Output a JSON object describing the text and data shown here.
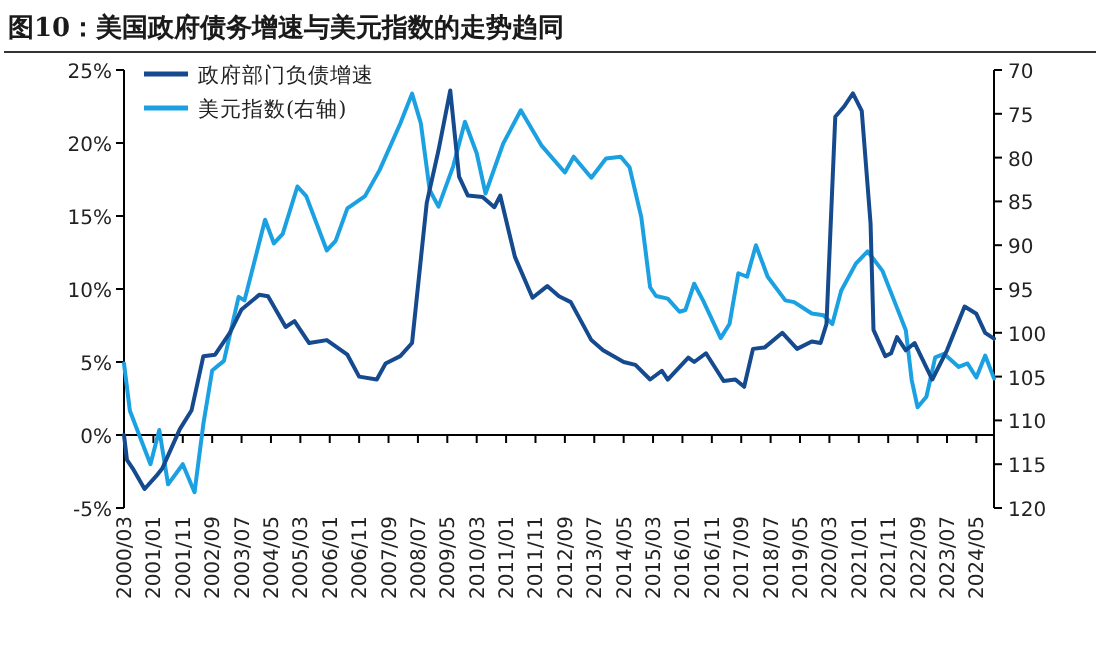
{
  "chart_data": {
    "type": "line",
    "title": "图10：美国政府债务增速与美元指数的走势趋同",
    "legend": "top left",
    "xlim": [
      "2000-03",
      "2024-11"
    ],
    "xticks": [
      {
        "value": "2000-03",
        "label": "2000/03"
      },
      {
        "value": "2001-01",
        "label": "2001/01"
      },
      {
        "value": "2001-11",
        "label": "2001/11"
      },
      {
        "value": "2002-09",
        "label": "2002/09"
      },
      {
        "value": "2003-07",
        "label": "2003/07"
      },
      {
        "value": "2004-05",
        "label": "2004/05"
      },
      {
        "value": "2005-03",
        "label": "2005/03"
      },
      {
        "value": "2006-01",
        "label": "2006/01"
      },
      {
        "value": "2006-11",
        "label": "2006/11"
      },
      {
        "value": "2007-09",
        "label": "2007/09"
      },
      {
        "value": "2008-07",
        "label": "2008/07"
      },
      {
        "value": "2009-05",
        "label": "2009/05"
      },
      {
        "value": "2010-03",
        "label": "2010/03"
      },
      {
        "value": "2011-01",
        "label": "2011/01"
      },
      {
        "value": "2011-11",
        "label": "2011/11"
      },
      {
        "value": "2012-09",
        "label": "2012/09"
      },
      {
        "value": "2013-07",
        "label": "2013/07"
      },
      {
        "value": "2014-05",
        "label": "2014/05"
      },
      {
        "value": "2015-03",
        "label": "2015/03"
      },
      {
        "value": "2016-01",
        "label": "2016/01"
      },
      {
        "value": "2016-11",
        "label": "2016/11"
      },
      {
        "value": "2017-09",
        "label": "2017/09"
      },
      {
        "value": "2018-07",
        "label": "2018/07"
      },
      {
        "value": "2019-05",
        "label": "2019/05"
      },
      {
        "value": "2020-03",
        "label": "2020/03"
      },
      {
        "value": "2021-01",
        "label": "2021/01"
      },
      {
        "value": "2021-11",
        "label": "2021/11"
      },
      {
        "value": "2022-09",
        "label": "2022/09"
      },
      {
        "value": "2023-07",
        "label": "2023/07"
      },
      {
        "value": "2024-05",
        "label": "2024/05"
      }
    ],
    "ylim": [
      -5,
      25
    ],
    "yticks": [
      {
        "value": -5,
        "label": "-5%"
      },
      {
        "value": 0,
        "label": "0%"
      },
      {
        "value": 5,
        "label": "5%"
      },
      {
        "value": 10,
        "label": "10%"
      },
      {
        "value": 15,
        "label": "15%"
      },
      {
        "value": 20,
        "label": "20%"
      },
      {
        "value": 25,
        "label": "25%"
      }
    ],
    "y2lim": [
      120,
      70
    ],
    "y2ticks": [
      70,
      75,
      80,
      85,
      90,
      95,
      100,
      105,
      110,
      115,
      120
    ],
    "series": [
      {
        "name": "政府部门负债增速",
        "color": "#164a8e",
        "x": [
          "2000-03",
          "2000-04",
          "2000-06",
          "2000-10",
          "2001-02",
          "2001-04",
          "2001-10",
          "2002-02",
          "2002-06",
          "2002-10",
          "2003-03",
          "2003-07",
          "2004-01",
          "2004-04",
          "2004-10",
          "2005-01",
          "2005-06",
          "2005-12",
          "2006-07",
          "2006-11",
          "2007-05",
          "2007-08",
          "2008-01",
          "2008-05",
          "2008-10",
          "2009-02",
          "2009-06",
          "2009-09",
          "2009-12",
          "2010-05",
          "2010-09",
          "2010-11",
          "2011-04",
          "2011-10",
          "2012-03",
          "2012-07",
          "2012-11",
          "2013-06",
          "2013-10",
          "2014-05",
          "2014-09",
          "2015-02",
          "2015-06",
          "2015-08",
          "2016-03",
          "2016-05",
          "2016-09",
          "2017-03",
          "2017-07",
          "2017-10",
          "2018-01",
          "2018-05",
          "2018-11",
          "2019-04",
          "2019-09",
          "2019-12",
          "2020-02",
          "2020-05",
          "2020-08",
          "2020-11",
          "2021-02",
          "2021-05",
          "2021-06",
          "2021-10",
          "2021-12",
          "2022-02",
          "2022-05",
          "2022-08",
          "2023-02",
          "2023-07",
          "2024-01",
          "2024-05",
          "2024-08",
          "2024-11"
        ],
        "values": [
          0,
          -1.7,
          -2.3,
          -3.7,
          -2.8,
          -2.3,
          0.4,
          1.7,
          5.4,
          5.5,
          7.0,
          8.6,
          9.6,
          9.5,
          7.4,
          7.8,
          6.3,
          6.5,
          5.5,
          4.0,
          3.8,
          4.9,
          5.4,
          6.3,
          15.9,
          19.5,
          23.6,
          17.7,
          16.4,
          16.3,
          15.6,
          16.4,
          12.2,
          9.4,
          10.2,
          9.5,
          9.1,
          6.5,
          5.8,
          5.0,
          4.8,
          3.8,
          4.4,
          3.8,
          5.3,
          5.0,
          5.6,
          3.7,
          3.8,
          3.3,
          5.9,
          6.0,
          7.0,
          5.9,
          6.4,
          6.3,
          7.6,
          21.8,
          22.5,
          23.4,
          22.2,
          14.5,
          7.2,
          5.4,
          5.6,
          6.7,
          5.8,
          6.3,
          3.8,
          5.8,
          8.8,
          8.3,
          7.0,
          6.6
        ]
      },
      {
        "name": "美元指数(右轴)",
        "color": "#1ba1e2",
        "axis": "y2",
        "x": [
          "2000-03",
          "2000-05",
          "2000-12",
          "2001-03",
          "2001-06",
          "2001-11",
          "2002-03",
          "2002-06",
          "2002-09",
          "2003-01",
          "2003-06",
          "2003-08",
          "2004-03",
          "2004-06",
          "2004-09",
          "2005-02",
          "2005-05",
          "2005-12",
          "2006-03",
          "2006-07",
          "2007-01",
          "2007-06",
          "2008-01",
          "2008-05",
          "2008-08",
          "2008-11",
          "2009-02",
          "2009-07",
          "2009-11",
          "2010-03",
          "2010-06",
          "2010-12",
          "2011-06",
          "2012-01",
          "2012-09",
          "2012-12",
          "2013-06",
          "2013-11",
          "2014-04",
          "2014-07",
          "2014-11",
          "2015-02",
          "2015-04",
          "2015-08",
          "2015-12",
          "2016-02",
          "2016-05",
          "2016-08",
          "2017-02",
          "2017-05",
          "2017-08",
          "2017-11",
          "2018-02",
          "2018-06",
          "2018-12",
          "2019-03",
          "2019-09",
          "2020-01",
          "2020-04",
          "2020-07",
          "2020-12",
          "2021-04",
          "2021-09",
          "2022-01",
          "2022-05",
          "2022-07",
          "2022-09",
          "2022-12",
          "2023-03",
          "2023-06",
          "2023-11",
          "2024-02",
          "2024-05",
          "2024-08",
          "2024-11"
        ],
        "values": [
          103.5,
          108.9,
          115,
          111.1,
          117.3,
          115,
          118.2,
          110.4,
          104.3,
          103.2,
          95.9,
          96.3,
          87.1,
          89.8,
          88.7,
          83.3,
          84.4,
          90.6,
          89.5,
          85.8,
          84.4,
          81.4,
          76.1,
          72.7,
          76.1,
          83.7,
          85.6,
          81,
          75.9,
          79.5,
          84.1,
          78.4,
          74.6,
          78.6,
          81.7,
          79.9,
          82.3,
          80.1,
          79.9,
          81.1,
          86.8,
          94.8,
          95.8,
          96.1,
          97.6,
          97.4,
          94.4,
          96.3,
          100.6,
          99,
          93.2,
          93.6,
          90,
          93.6,
          96.3,
          96.5,
          97.8,
          98,
          99,
          95.2,
          92.1,
          90.7,
          92.9,
          96.3,
          99.7,
          105.4,
          108.5,
          107.3,
          102.8,
          102.4,
          103.9,
          103.5,
          105.1,
          102.6,
          105.2
        ]
      }
    ]
  }
}
